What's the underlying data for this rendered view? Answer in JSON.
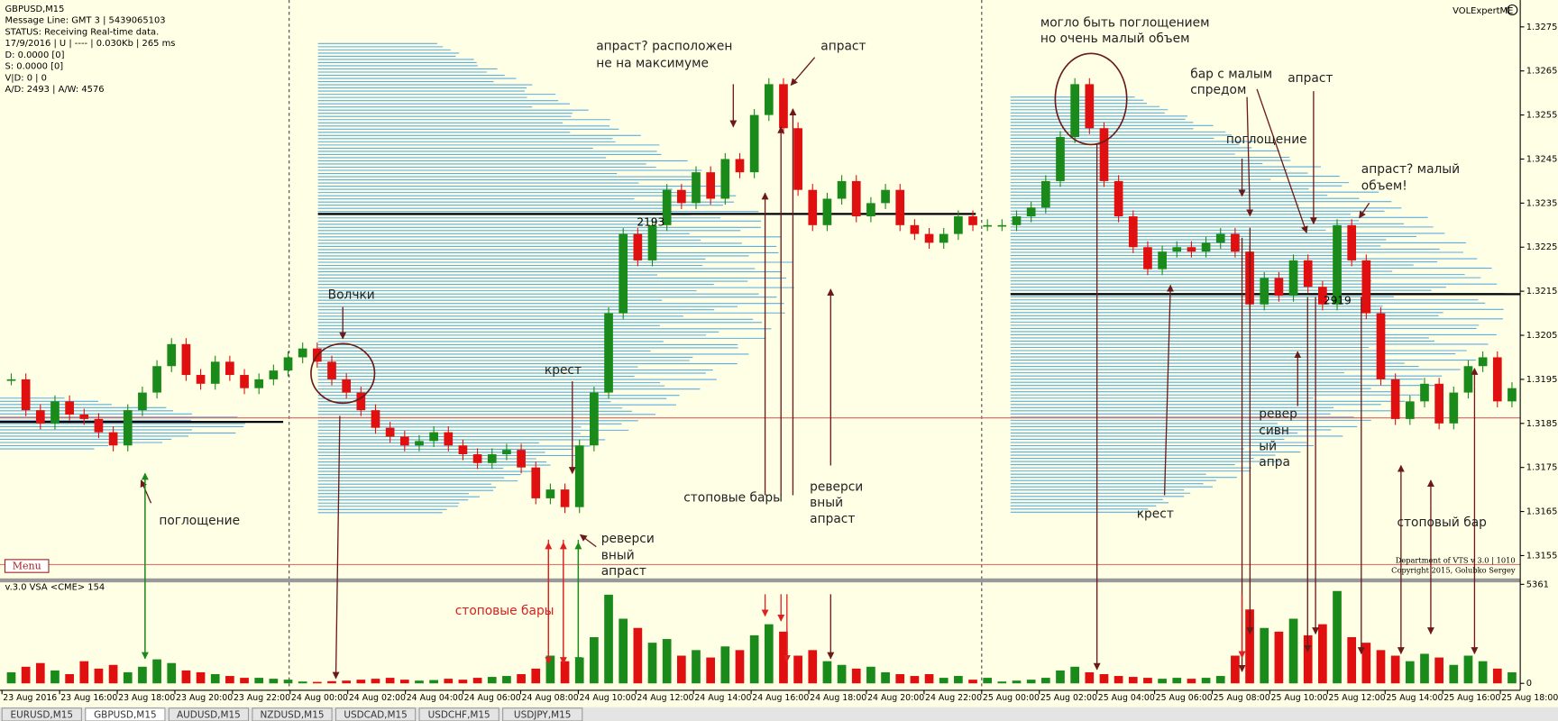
{
  "window": {
    "info": [
      "GBPUSD,M15",
      "Message Line: GMT 3 | 5439065103",
      "STATUS:  Receiving Real-time data.",
      "17/9/2016 | U | ---- | 0.030Kb | 265 ms",
      "D: 0.0000  [0]",
      "S: 0.0000  [0]",
      "V|D: 0 | 0",
      "A/D: 2493 | A/W: 4576"
    ],
    "indicator_name": "VOLExpertME",
    "menu": "Menu",
    "credits": [
      "Department of VTS  v 3.0 | 1010",
      "Copyright 2015, Golubko Sergey"
    ],
    "volume_title": "v.3.0 VSA <CME> 154",
    "tabs": [
      "EURUSD,M15",
      "GBPUSD,M15",
      "AUDUSD,M15",
      "NZDUSD,M15",
      "USDCAD,M15",
      "USDCHF,M15",
      "USDJPY,M15"
    ],
    "level_labels": [
      "2193",
      "2919"
    ]
  },
  "price_axis": {
    "ylim": [
      1.31496,
      1.32811
    ],
    "yticks": [
      1.3155,
      1.3165,
      1.3175,
      1.3185,
      1.3195,
      1.3205,
      1.3215,
      1.3225,
      1.3235,
      1.3245,
      1.3255,
      1.3265,
      1.3275
    ]
  },
  "candles": {
    "closes": [
      1.3195,
      1.3188,
      1.3185,
      1.319,
      1.3187,
      1.3186,
      1.3183,
      1.318,
      1.3188,
      1.3192,
      1.3198,
      1.3203,
      1.3196,
      1.3194,
      1.3199,
      1.3196,
      1.3193,
      1.3195,
      1.3197,
      1.32,
      1.3202,
      1.3199,
      1.3195,
      1.3192,
      1.3188,
      1.3184,
      1.3182,
      1.318,
      1.3181,
      1.3183,
      1.318,
      1.3178,
      1.3176,
      1.3178,
      1.3179,
      1.3175,
      1.3168,
      1.317,
      1.3166,
      1.318,
      1.3192,
      1.321,
      1.3228,
      1.3222,
      1.323,
      1.3238,
      1.3235,
      1.3242,
      1.3236,
      1.3245,
      1.3242,
      1.3255,
      1.3262,
      1.3252,
      1.3238,
      1.323,
      1.3236,
      1.324,
      1.3232,
      1.3235,
      1.3238,
      1.323,
      1.3228,
      1.3226,
      1.3228,
      1.3232,
      1.323,
      1.323,
      1.323,
      1.3232,
      1.3234,
      1.324,
      1.325,
      1.3262,
      1.3252,
      1.324,
      1.3232,
      1.3225,
      1.322,
      1.3224,
      1.3225,
      1.3224,
      1.3226,
      1.3228,
      1.3224,
      1.3212,
      1.3218,
      1.3214,
      1.3222,
      1.3216,
      1.3212,
      1.323,
      1.3222,
      1.321,
      1.3195,
      1.3186,
      1.319,
      1.3194,
      1.3185,
      1.3192,
      1.3198,
      1.32,
      1.319,
      1.3193
    ]
  },
  "volume": {
    "ylim": [
      0,
      5361
    ],
    "yticks": [
      0,
      5361
    ],
    "values": [
      600,
      900,
      1100,
      700,
      500,
      1200,
      800,
      1000,
      600,
      900,
      1300,
      1100,
      700,
      600,
      500,
      400,
      300,
      300,
      250,
      200,
      100,
      80,
      120,
      150,
      200,
      250,
      300,
      200,
      150,
      180,
      250,
      200,
      300,
      350,
      400,
      500,
      800,
      1500,
      1200,
      1400,
      2500,
      4800,
      3500,
      3000,
      2200,
      2400,
      1500,
      1800,
      1400,
      2000,
      1800,
      2600,
      3200,
      2800,
      1500,
      1800,
      1200,
      1000,
      800,
      900,
      600,
      500,
      400,
      500,
      300,
      400,
      200,
      300,
      100,
      150,
      200,
      300,
      700,
      900,
      600,
      500,
      400,
      350,
      300,
      250,
      300,
      250,
      300,
      400,
      1500,
      4000,
      3000,
      2800,
      3500,
      2600,
      3200,
      5000,
      2500,
      2200,
      1800,
      1500,
      1200,
      1600,
      1400,
      1000,
      1500,
      1200,
      800,
      600
    ]
  },
  "time_labels": [
    "23 Aug 2016",
    "23 Aug 16:00",
    "23 Aug 18:00",
    "23 Aug 20:00",
    "23 Aug 22:00",
    "24 Aug 00:00",
    "24 Aug 02:00",
    "24 Aug 04:00",
    "24 Aug 06:00",
    "24 Aug 08:00",
    "24 Aug 10:00",
    "24 Aug 12:00",
    "24 Aug 14:00",
    "24 Aug 16:00",
    "24 Aug 18:00",
    "24 Aug 20:00",
    "24 Aug 22:00",
    "25 Aug 00:00",
    "25 Aug 02:00",
    "25 Aug 04:00",
    "25 Aug 06:00",
    "25 Aug 08:00",
    "25 Aug 10:00",
    "25 Aug 12:00",
    "25 Aug 14:00",
    "25 Aug 16:00",
    "25 Aug 18:00"
  ],
  "annotations": [
    "Волчки",
    "поглощение",
    "крест",
    "реверси",
    "вный",
    "апраст",
    "стоповые бары",
    "апраст? расположен",
    "не на максимуме",
    "апраст",
    "стоповые бары",
    "реверси",
    "вный",
    "апраст",
    "могло быть поглощением",
    "но очень малый объем",
    "бар с малым",
    "спредом",
    "апраст",
    "поглощение",
    "апраст? малый",
    "объем!",
    "крест",
    "ревер",
    "сивн",
    "ый",
    "апра",
    "стоповый бар"
  ]
}
